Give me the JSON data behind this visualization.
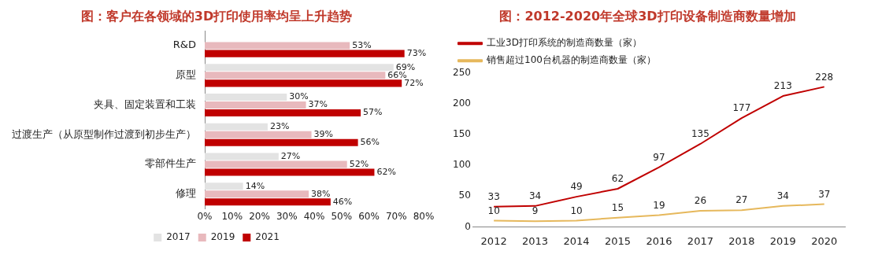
{
  "chart_data": [
    {
      "type": "bar",
      "orientation": "horizontal",
      "title": "图：客户在各领域的3D打印使用率均呈上升趋势",
      "categories": [
        "R&D",
        "原型",
        "夹具、固定装置和工装",
        "过渡生产（从原型制作过渡到初步生产）",
        "零部件生产",
        "修理"
      ],
      "series": [
        {
          "name": "2017",
          "color": "#e3e3e3",
          "values": [
            null,
            69,
            30,
            23,
            27,
            14
          ],
          "value_labels": [
            null,
            "69%",
            "30%",
            "23%",
            "27%",
            "14%"
          ]
        },
        {
          "name": "2019",
          "color": "#e8b9bd",
          "values": [
            53,
            66,
            37,
            39,
            52,
            38
          ],
          "value_labels": [
            "53%",
            "66%",
            "37%",
            "39%",
            "52%",
            "38%"
          ]
        },
        {
          "name": "2021",
          "color": "#c00000",
          "values": [
            73,
            72,
            57,
            56,
            62,
            46
          ],
          "value_labels": [
            "73%",
            "72%",
            "57%",
            "56%",
            "62%",
            "46%"
          ]
        }
      ],
      "xlim": [
        0,
        80
      ],
      "xticks": [
        {
          "value": 0,
          "label": "0%"
        },
        {
          "value": 10,
          "label": "10%"
        },
        {
          "value": 20,
          "label": "20%"
        },
        {
          "value": 30,
          "label": "30%"
        },
        {
          "value": 40,
          "label": "40%"
        },
        {
          "value": 50,
          "label": "50%"
        },
        {
          "value": 60,
          "label": "60%"
        },
        {
          "value": 70,
          "label": "70%"
        },
        {
          "value": 80,
          "label": "80%"
        }
      ],
      "grid": false,
      "legend": "bottom"
    },
    {
      "type": "line",
      "title": "图：2012-2020年全球3D打印设备制造商数量增加",
      "categories": [
        "2012",
        "2013",
        "2014",
        "2015",
        "2016",
        "2017",
        "2018",
        "2019",
        "2020"
      ],
      "series": [
        {
          "name": "工业3D打印系统的制造商数量（家）",
          "color": "#c00000",
          "values": [
            33,
            34,
            49,
            62,
            97,
            135,
            177,
            213,
            228
          ]
        },
        {
          "name": "销售超过100台机器的制造商数量（家）",
          "color": "#e6b85c",
          "values": [
            10,
            9,
            10,
            15,
            19,
            26,
            27,
            34,
            37
          ]
        }
      ],
      "ylim": [
        0,
        250
      ],
      "yticks": [
        0,
        50,
        100,
        150,
        200,
        250
      ],
      "grid": false,
      "legend": "top left",
      "marker": "none",
      "data_labels": true
    }
  ]
}
